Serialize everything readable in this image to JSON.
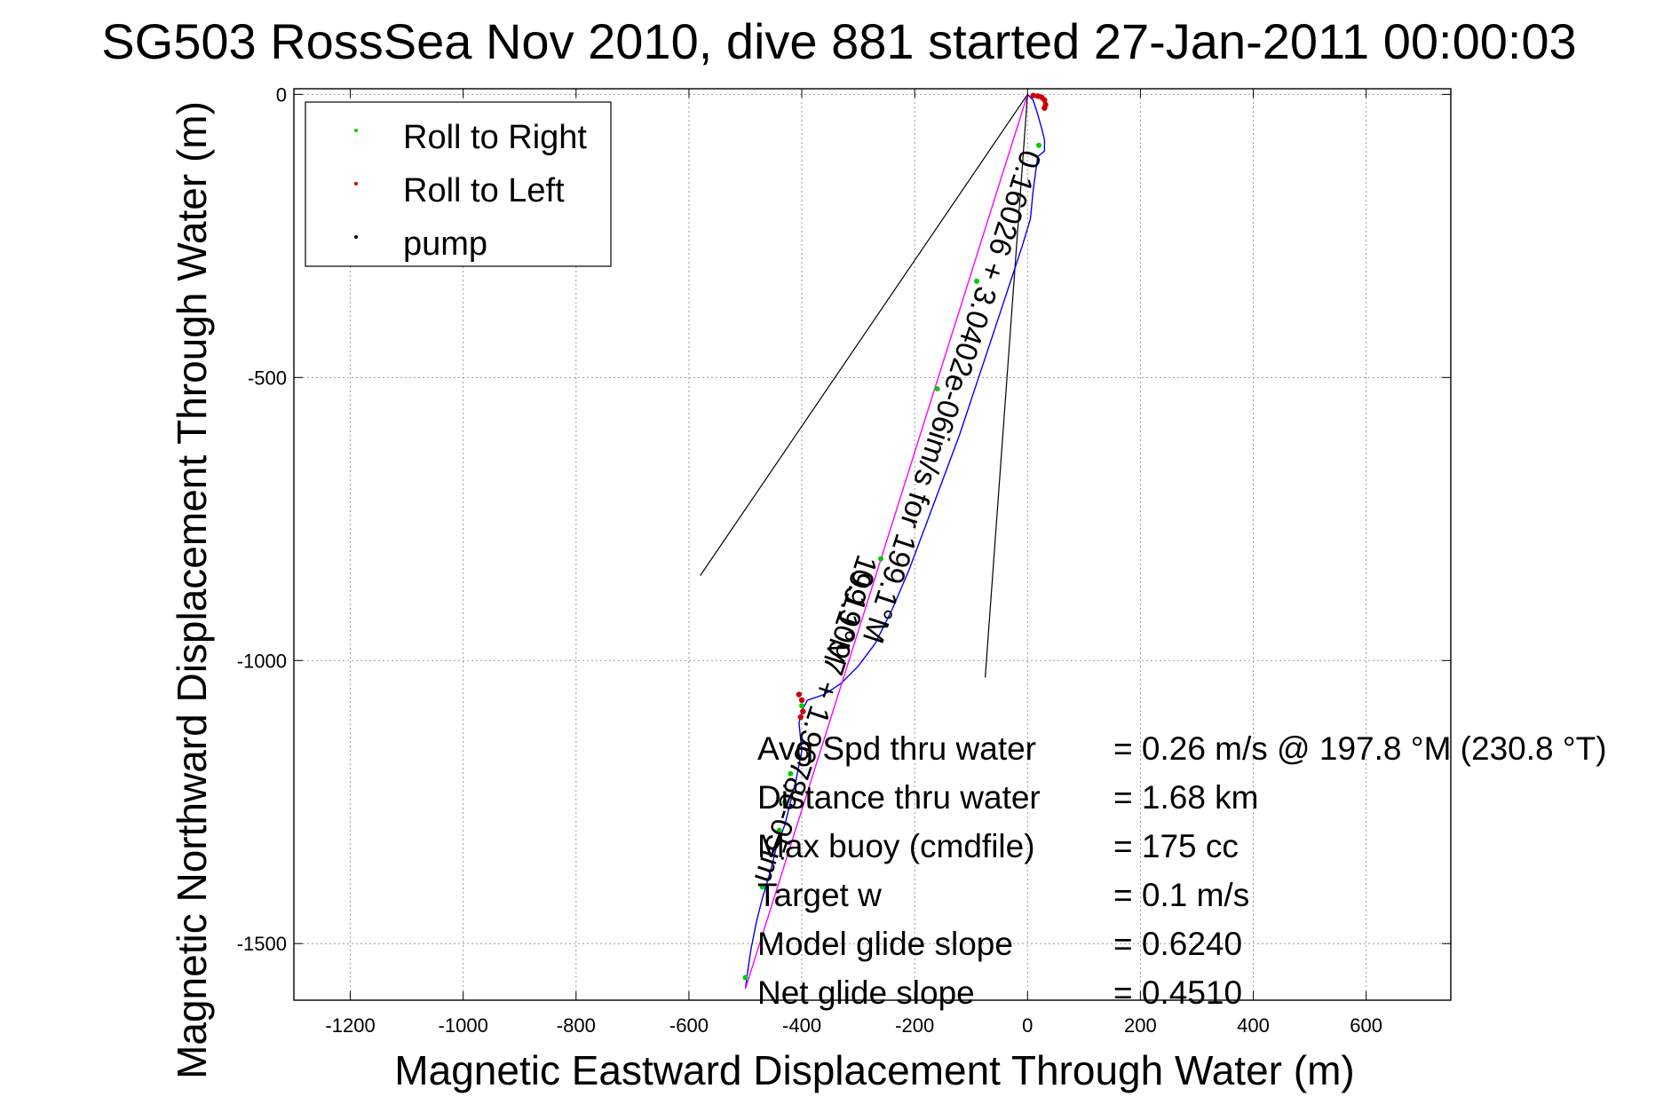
{
  "chart_data": {
    "type": "line",
    "title": "SG503 RossSea Nov 2010, dive 881 started 27-Jan-2011 00:00:03",
    "xlabel": "Magnetic Eastward Displacement Through Water (m)",
    "ylabel": "Magnetic Northward Displacement Through Water (m)",
    "xlim": [
      -1300,
      750
    ],
    "ylim": [
      -1600,
      10
    ],
    "xticks": [
      -1200,
      -1000,
      -800,
      -600,
      -400,
      -200,
      0,
      200,
      400,
      600
    ],
    "yticks": [
      0,
      -500,
      -1000,
      -1500
    ],
    "grid": true,
    "legend": {
      "placement": "top-left",
      "entries": [
        {
          "label": "Roll to Right",
          "color": "#00cc00"
        },
        {
          "label": "Roll to Left",
          "color": "#cc0000"
        },
        {
          "label": "pump",
          "color": "#000000"
        }
      ]
    },
    "series": [
      {
        "color": "#0000ff",
        "x": [
          0,
          10,
          18,
          25,
          30,
          30,
          18,
          10,
          5,
          -10,
          -30,
          -60,
          -90,
          -120,
          -150,
          -180,
          -210,
          -240,
          -270,
          -300,
          -330,
          -360,
          -390,
          -398,
          -405,
          -400,
          -410,
          -420,
          -430,
          -445,
          -455,
          -470,
          -480,
          -490,
          -496,
          -500
        ],
        "y": [
          0,
          -10,
          -35,
          -60,
          -80,
          -100,
          -110,
          -170,
          -220,
          -270,
          -330,
          -420,
          -510,
          -600,
          -680,
          -760,
          -840,
          -910,
          -970,
          -1010,
          -1040,
          -1060,
          -1070,
          -1085,
          -1110,
          -1160,
          -1210,
          -1250,
          -1290,
          -1330,
          -1370,
          -1420,
          -1460,
          -1510,
          -1550,
          -1580
        ]
      },
      {
        "color": "#ff00ff",
        "x": [
          0,
          -500
        ],
        "y": [
          0,
          -1580
        ]
      }
    ],
    "roll_right_points": {
      "x": [
        20,
        -90,
        -160,
        -260,
        -400,
        -420,
        -430,
        -440,
        -470,
        -500
      ],
      "y": [
        -90,
        -330,
        -520,
        -820,
        -1080,
        -1200,
        -1250,
        -1300,
        -1400,
        -1560
      ]
    },
    "roll_left_points": {
      "x": [
        10,
        18,
        25,
        30,
        32,
        30,
        -405,
        -400,
        -398,
        -402
      ],
      "y": [
        -2,
        -3,
        -5,
        -10,
        -18,
        -24,
        -1060,
        -1070,
        -1090,
        -1100
      ]
    },
    "heading_lines": [
      {
        "x": [
          0,
          -580
        ],
        "y": [
          0,
          -850
        ]
      },
      {
        "x": [
          0,
          -75
        ],
        "y": [
          0,
          -1030
        ]
      }
    ],
    "annotations": [
      {
        "text": "0.16026 + 3.0402e-06im/s for 199.1°M",
        "x": -10,
        "y": -95,
        "rotation_deg": 108
      },
      {
        "text": "0.19097 + 1.9678e-05im",
        "x": -305,
        "y": -835,
        "rotation_deg": 108
      },
      {
        "text": "199.1°M",
        "x": -300,
        "y": -810,
        "rotation_deg": 108
      }
    ],
    "stats": [
      {
        "label": "Avg Spd thru water",
        "value": "=  0.26 m/s @ 197.8 °M (230.8 °T)"
      },
      {
        "label": "Distance thru water",
        "value": "=  1.68 km"
      },
      {
        "label": "Max buoy (cmdfile)",
        "value": "= 175 cc"
      },
      {
        "label": "Target w",
        "value": "= 0.1 m/s"
      },
      {
        "label": "Model glide slope",
        "value": "= 0.6240"
      },
      {
        "label": "Net glide slope",
        "value": "= 0.4510"
      }
    ]
  }
}
